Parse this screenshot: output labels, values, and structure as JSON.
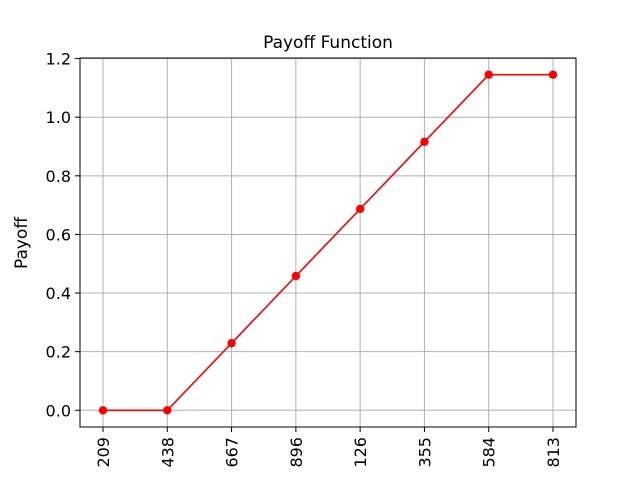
{
  "chart_data": {
    "type": "line",
    "title": "Payoff Function",
    "xlabel": "",
    "ylabel": "Payoff",
    "categories": [
      "209",
      "438",
      "667",
      "896",
      "126",
      "355",
      "584",
      "813"
    ],
    "series": [
      {
        "values": [
          0.0,
          0.0,
          0.229,
          0.458,
          0.687,
          0.916,
          1.145,
          1.145
        ],
        "color": "#ff0000",
        "marker": "circle"
      }
    ],
    "yticks": [
      "0.0",
      "0.2",
      "0.4",
      "0.6",
      "0.8",
      "1.0",
      "1.2"
    ],
    "ylim": [
      -0.057,
      1.202
    ],
    "grid": true,
    "x_tick_rotation": "vertical",
    "colors": {
      "line": "#ff0000",
      "grid": "#b0b0b0",
      "axes": "#000000",
      "background": "#ffffff"
    }
  }
}
